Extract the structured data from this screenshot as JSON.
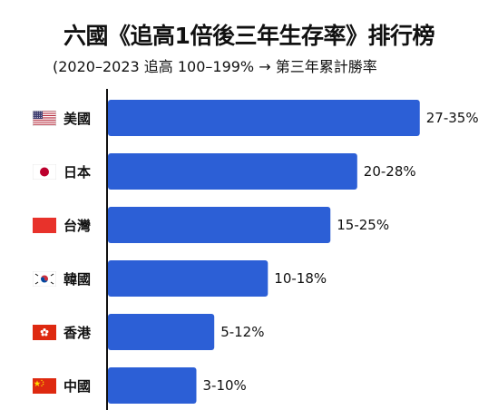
{
  "title": "六國《追高1倍後三年生存率》排行榜",
  "subtitle": "(2020–2023 追高 100–199% → 第三年累計勝率",
  "colors": {
    "bar": "#2c5fd6",
    "axis": "#111111"
  },
  "chart_data": {
    "type": "bar",
    "orientation": "horizontal",
    "title": "六國《追高1倍後三年生存率》排行榜",
    "subtitle": "(2020–2023 追高 100–199% → 第三年累計勝率",
    "categories": [
      "美國",
      "日本",
      "台灣",
      "韓國",
      "香港",
      "中國"
    ],
    "ranges": [
      [
        27,
        35
      ],
      [
        20,
        28
      ],
      [
        15,
        25
      ],
      [
        10,
        18
      ],
      [
        5,
        12
      ],
      [
        3,
        10
      ]
    ],
    "labels": [
      "27-35%",
      "20-28%",
      "15-25%",
      "10-18%",
      "5-12%",
      "3-10%"
    ],
    "flag_icons": [
      "us-flag-icon",
      "japan-flag-icon",
      "taiwan-flag-icon",
      "korea-flag-icon",
      "hong-kong-flag-icon",
      "china-flag-icon"
    ],
    "xlim": [
      0,
      40
    ],
    "grid": false,
    "legend": "none"
  }
}
